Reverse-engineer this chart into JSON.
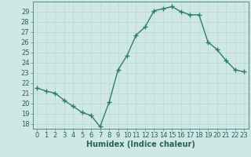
{
  "x": [
    0,
    1,
    2,
    3,
    4,
    5,
    6,
    7,
    8,
    9,
    10,
    11,
    12,
    13,
    14,
    15,
    16,
    17,
    18,
    19,
    20,
    21,
    22,
    23
  ],
  "y": [
    21.5,
    21.2,
    21.0,
    20.3,
    19.7,
    19.1,
    18.8,
    17.7,
    20.1,
    23.3,
    24.7,
    26.7,
    27.5,
    29.1,
    29.3,
    29.5,
    29.0,
    28.7,
    28.7,
    26.0,
    25.3,
    24.2,
    23.3,
    23.1
  ],
  "line_color": "#2e7d6e",
  "marker": "+",
  "marker_size": 4,
  "bg_color": "#cfe8e6",
  "grid_color": "#b8d8d5",
  "xlabel": "Humidex (Indice chaleur)",
  "xlim": [
    -0.5,
    23.5
  ],
  "ylim": [
    17.5,
    30.0
  ],
  "xticks": [
    0,
    1,
    2,
    3,
    4,
    5,
    6,
    7,
    8,
    9,
    10,
    11,
    12,
    13,
    14,
    15,
    16,
    17,
    18,
    19,
    20,
    21,
    22,
    23
  ],
  "yticks": [
    18,
    19,
    20,
    21,
    22,
    23,
    24,
    25,
    26,
    27,
    28,
    29
  ],
  "tick_color": "#2e5f5a",
  "axis_color": "#5a8a85",
  "xlabel_fontsize": 7,
  "tick_fontsize": 6,
  "linewidth": 1.0
}
